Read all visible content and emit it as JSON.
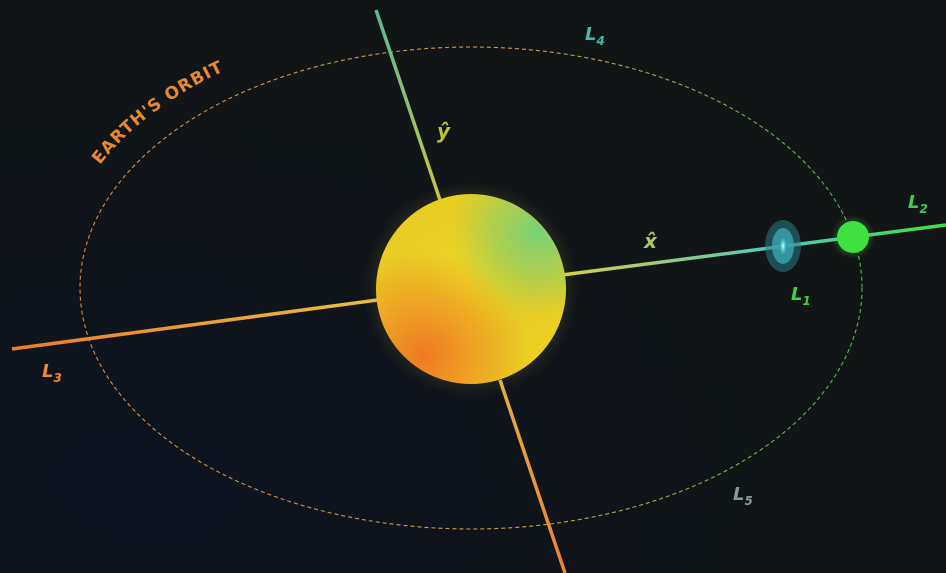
{
  "diagram": {
    "orbit_label": "EARTH'S ORBIT",
    "axes": {
      "x": "x̂",
      "y": "ŷ"
    },
    "points": [
      {
        "id": "L1",
        "base": "L",
        "sub": "1"
      },
      {
        "id": "L2",
        "base": "L",
        "sub": "2"
      },
      {
        "id": "L3",
        "base": "L",
        "sub": "3"
      },
      {
        "id": "L4",
        "base": "L",
        "sub": "4"
      },
      {
        "id": "L5",
        "base": "L",
        "sub": "5"
      }
    ]
  },
  "colors": {
    "background": "#111414",
    "sun_core": "#ecd422",
    "orange": "#ee8a2b",
    "green": "#3fe040",
    "teal": "#48b8a8",
    "gray_label": "#8a9a9a",
    "l1_glow": "#4fc7cf"
  }
}
